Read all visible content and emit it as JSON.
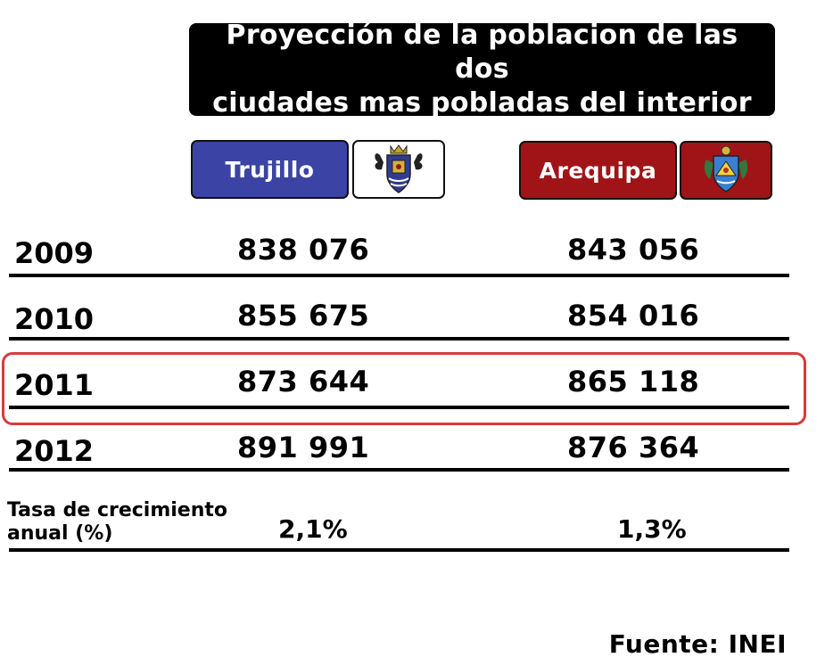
{
  "header": {
    "title_line1": "Proyección de la poblacion de las dos",
    "title_line2": "ciudades mas pobladas del interior"
  },
  "cities": [
    {
      "name": "Trujillo",
      "color": "#3b44a4",
      "crest_icon": "trujillo-coat-of-arms-icon"
    },
    {
      "name": "Arequipa",
      "color": "#a01418",
      "crest_icon": "arequipa-coat-of-arms-icon"
    }
  ],
  "chart_data": {
    "type": "table",
    "title": "Proyección de la poblacion de las dos ciudades mas pobladas del interior",
    "columns": [
      "Trujillo",
      "Arequipa"
    ],
    "rows": [
      {
        "year": "2009",
        "values": [
          "838 076",
          "843 056"
        ],
        "highlighted": false
      },
      {
        "year": "2010",
        "values": [
          "855 675",
          "854 016"
        ],
        "highlighted": false
      },
      {
        "year": "2011",
        "values": [
          "873 644",
          "865 118"
        ],
        "highlighted": true
      },
      {
        "year": "2012",
        "values": [
          "891 991",
          "876 364"
        ],
        "highlighted": false
      }
    ],
    "growth": {
      "label": "Tasa de crecimiento anual (%)",
      "values": [
        "2,1%",
        "1,3%"
      ]
    },
    "highlight_color": "#d93a3a"
  },
  "footer": {
    "source": "Fuente: INEI"
  }
}
